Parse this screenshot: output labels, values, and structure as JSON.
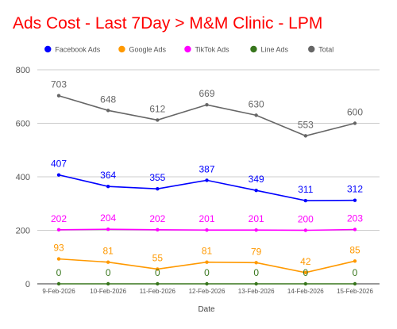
{
  "chart_data": {
    "type": "line",
    "title": "Ads Cost - Last 7Day > M&M Clinic - LPM",
    "xlabel": "Date",
    "ylabel": "",
    "ylim": [
      0,
      800
    ],
    "yticks": [
      "0",
      "200",
      "400",
      "600",
      "800"
    ],
    "grid": true,
    "legend_position": "top",
    "categories": [
      "9-Feb-2026",
      "10-Feb-2026",
      "11-Feb-2026",
      "12-Feb-2026",
      "13-Feb-2026",
      "14-Feb-2026",
      "15-Feb-2026"
    ],
    "series": [
      {
        "name": "Facebook Ads",
        "color": "#0000ff",
        "values": [
          407,
          364,
          355,
          387,
          349,
          311,
          312
        ]
      },
      {
        "name": "Google Ads",
        "color": "#ff9900",
        "values": [
          93,
          81,
          55,
          81,
          79,
          42,
          85
        ]
      },
      {
        "name": "TikTok Ads",
        "color": "#ff00ff",
        "values": [
          202,
          204,
          202,
          201,
          201,
          200,
          203
        ]
      },
      {
        "name": "Line Ads",
        "color": "#38761d",
        "values": [
          0,
          0,
          0,
          0,
          0,
          0,
          0
        ]
      },
      {
        "name": "Total",
        "color": "#666666",
        "values": [
          703,
          648,
          612,
          669,
          630,
          553,
          600
        ]
      }
    ]
  }
}
